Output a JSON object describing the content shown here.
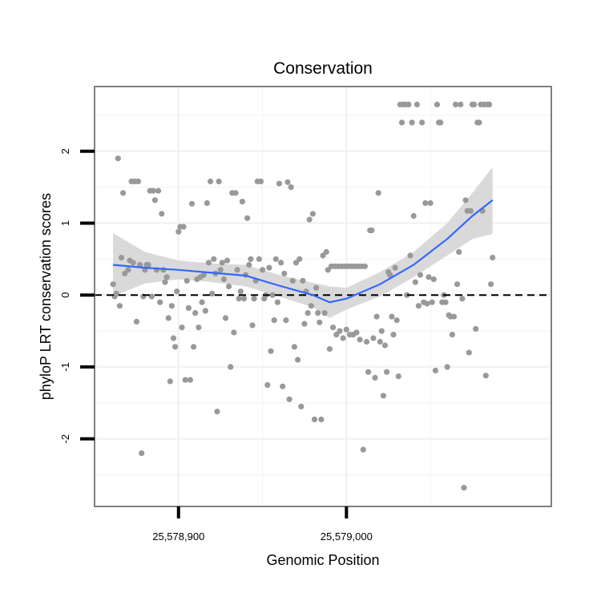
{
  "chart_data": {
    "type": "scatter",
    "title": "Conservation",
    "xlabel": "Genomic Position",
    "ylabel": "phyloP LRT conservation scores",
    "xlim": [
      25578850,
      25579122
    ],
    "ylim": [
      -2.94,
      2.9
    ],
    "x_ticks": [
      25578900,
      25579000
    ],
    "x_tick_labels": [
      "25,578,900",
      "25,579,000"
    ],
    "y_ticks": [
      -2,
      -1,
      0,
      1,
      2
    ],
    "y_tick_labels": [
      "-2",
      "-1",
      "0",
      "1",
      "2"
    ],
    "grid": true,
    "reference_line": {
      "y": 0,
      "style": "dashed"
    },
    "colors": {
      "points": "#999999",
      "smooth": "#3366ff",
      "ribbon": "#d9d9d9",
      "panel_border": "#7f7f7f",
      "grid": "#f2f2f2"
    },
    "points": [
      [
        25578861,
        0.15
      ],
      [
        25578862,
        -0.02
      ],
      [
        25578863,
        0.02
      ],
      [
        25578864,
        1.9
      ],
      [
        25578865,
        -0.15
      ],
      [
        25578866,
        0.52
      ],
      [
        25578867,
        1.42
      ],
      [
        25578868,
        0.3
      ],
      [
        25578870,
        0.35
      ],
      [
        25578871,
        0.48
      ],
      [
        25578872,
        1.58
      ],
      [
        25578873,
        0.45
      ],
      [
        25578874,
        1.58
      ],
      [
        25578875,
        -0.37
      ],
      [
        25578876,
        1.58
      ],
      [
        25578877,
        0.42
      ],
      [
        25578878,
        -2.2
      ],
      [
        25578879,
        -0.02
      ],
      [
        25578880,
        0.35
      ],
      [
        25578881,
        0.42
      ],
      [
        25578882,
        0.42
      ],
      [
        25578883,
        1.45
      ],
      [
        25578884,
        -0.02
      ],
      [
        25578885,
        1.45
      ],
      [
        25578886,
        1.32
      ],
      [
        25578887,
        0.35
      ],
      [
        25578888,
        1.45
      ],
      [
        25578889,
        -0.1
      ],
      [
        25578890,
        1.13
      ],
      [
        25578891,
        0.35
      ],
      [
        25578892,
        0.18
      ],
      [
        25578893,
        0.25
      ],
      [
        25578894,
        -0.32
      ],
      [
        25578895,
        -1.2
      ],
      [
        25578896,
        -0.15
      ],
      [
        25578897,
        -0.6
      ],
      [
        25578898,
        -0.72
      ],
      [
        25578899,
        0.05
      ],
      [
        25578900,
        0.88
      ],
      [
        25578901,
        0.95
      ],
      [
        25578902,
        -0.45
      ],
      [
        25578903,
        0.95
      ],
      [
        25578904,
        -1.18
      ],
      [
        25578905,
        0.2
      ],
      [
        25578906,
        -0.18
      ],
      [
        25578907,
        -1.18
      ],
      [
        25578908,
        1.27
      ],
      [
        25578909,
        -0.72
      ],
      [
        25578910,
        -0.25
      ],
      [
        25578911,
        0.22
      ],
      [
        25578912,
        -0.45
      ],
      [
        25578913,
        0.25
      ],
      [
        25578914,
        -0.1
      ],
      [
        25578915,
        0.28
      ],
      [
        25578916,
        -0.22
      ],
      [
        25578917,
        1.28
      ],
      [
        25578918,
        0.45
      ],
      [
        25578919,
        1.58
      ],
      [
        25578920,
        0.02
      ],
      [
        25578921,
        0.5
      ],
      [
        25578922,
        0.3
      ],
      [
        25578923,
        -1.62
      ],
      [
        25578924,
        1.58
      ],
      [
        25578925,
        0.35
      ],
      [
        25578926,
        0.45
      ],
      [
        25578927,
        0.22
      ],
      [
        25578928,
        -0.32
      ],
      [
        25578929,
        0.48
      ],
      [
        25578930,
        0.12
      ],
      [
        25578931,
        -1.0
      ],
      [
        25578932,
        1.42
      ],
      [
        25578933,
        -0.52
      ],
      [
        25578934,
        1.42
      ],
      [
        25578935,
        0.35
      ],
      [
        25578936,
        -0.05
      ],
      [
        25578937,
        0.05
      ],
      [
        25578938,
        1.3
      ],
      [
        25578939,
        -0.05
      ],
      [
        25578940,
        0.28
      ],
      [
        25578941,
        1.07
      ],
      [
        25578942,
        0.42
      ],
      [
        25578943,
        0.5
      ],
      [
        25578944,
        -0.42
      ],
      [
        25578945,
        -0.05
      ],
      [
        25578946,
        0.2
      ],
      [
        25578947,
        1.58
      ],
      [
        25578948,
        0.5
      ],
      [
        25578949,
        1.58
      ],
      [
        25578950,
        0.35
      ],
      [
        25578951,
        -0.05
      ],
      [
        25578952,
        0.0
      ],
      [
        25578953,
        -1.25
      ],
      [
        25578954,
        0.38
      ],
      [
        25578955,
        -0.78
      ],
      [
        25578956,
        0.0
      ],
      [
        25578957,
        -0.35
      ],
      [
        25578958,
        0.5
      ],
      [
        25578959,
        -0.1
      ],
      [
        25578960,
        1.55
      ],
      [
        25578961,
        0.45
      ],
      [
        25578962,
        -1.27
      ],
      [
        25578963,
        0.3
      ],
      [
        25578964,
        -0.35
      ],
      [
        25578965,
        1.57
      ],
      [
        25578966,
        -1.45
      ],
      [
        25578967,
        1.5
      ],
      [
        25578968,
        0.2
      ],
      [
        25578969,
        -0.72
      ],
      [
        25578970,
        0.45
      ],
      [
        25578971,
        -0.9
      ],
      [
        25578972,
        0.5
      ],
      [
        25578973,
        -1.55
      ],
      [
        25578974,
        0.2
      ],
      [
        25578975,
        -0.4
      ],
      [
        25578976,
        0.05
      ],
      [
        25578977,
        -0.25
      ],
      [
        25578978,
        1.05
      ],
      [
        25578979,
        -0.15
      ],
      [
        25578980,
        1.13
      ],
      [
        25578981,
        -1.73
      ],
      [
        25578982,
        0.1
      ],
      [
        25578983,
        -0.25
      ],
      [
        25578984,
        -0.38
      ],
      [
        25578985,
        -1.73
      ],
      [
        25578986,
        0.55
      ],
      [
        25578987,
        -0.25
      ],
      [
        25578988,
        0.6
      ],
      [
        25578989,
        0.35
      ],
      [
        25578990,
        -0.75
      ],
      [
        25578991,
        0.4
      ],
      [
        25578992,
        -0.45
      ],
      [
        25578993,
        0.4
      ],
      [
        25578994,
        -0.55
      ],
      [
        25578995,
        0.4
      ],
      [
        25578996,
        -0.5
      ],
      [
        25578997,
        0.4
      ],
      [
        25578998,
        -0.6
      ],
      [
        25578999,
        0.4
      ],
      [
        25579000,
        -0.48
      ],
      [
        25579001,
        0.4
      ],
      [
        25579002,
        -0.55
      ],
      [
        25579003,
        0.4
      ],
      [
        25579004,
        -0.55
      ],
      [
        25579005,
        0.4
      ],
      [
        25579006,
        -0.52
      ],
      [
        25579007,
        0.4
      ],
      [
        25579008,
        -0.62
      ],
      [
        25579009,
        0.4
      ],
      [
        25579010,
        -2.15
      ],
      [
        25579011,
        0.4
      ],
      [
        25579012,
        -0.65
      ],
      [
        25579013,
        -1.07
      ],
      [
        25579014,
        0.9
      ],
      [
        25579015,
        0.9
      ],
      [
        25579016,
        -0.6
      ],
      [
        25579017,
        -1.15
      ],
      [
        25579018,
        -0.3
      ],
      [
        25579019,
        1.42
      ],
      [
        25579020,
        -0.65
      ],
      [
        25579021,
        -0.5
      ],
      [
        25579022,
        -1.4
      ],
      [
        25579023,
        -0.7
      ],
      [
        25579024,
        -1.07
      ],
      [
        25579025,
        0.32
      ],
      [
        25579026,
        0.28
      ],
      [
        25579027,
        -0.3
      ],
      [
        25579028,
        -0.55
      ],
      [
        25579029,
        0.38
      ],
      [
        25579030,
        -0.35
      ],
      [
        25579031,
        -1.13
      ],
      [
        25579032,
        2.65
      ],
      [
        25579033,
        2.4
      ],
      [
        25579034,
        2.65
      ],
      [
        25579035,
        2.65
      ],
      [
        25579036,
        0.0
      ],
      [
        25579037,
        2.65
      ],
      [
        25579038,
        0.55
      ],
      [
        25579039,
        2.4
      ],
      [
        25579040,
        1.1
      ],
      [
        25579041,
        0.18
      ],
      [
        25579042,
        2.65
      ],
      [
        25579043,
        -0.15
      ],
      [
        25579044,
        0.28
      ],
      [
        25579045,
        2.4
      ],
      [
        25579046,
        -0.1
      ],
      [
        25579047,
        1.28
      ],
      [
        25579048,
        -0.12
      ],
      [
        25579049,
        0.25
      ],
      [
        25579050,
        1.28
      ],
      [
        25579051,
        -0.1
      ],
      [
        25579052,
        0.22
      ],
      [
        25579053,
        -1.05
      ],
      [
        25579054,
        2.65
      ],
      [
        25579055,
        2.4
      ],
      [
        25579056,
        2.4
      ],
      [
        25579057,
        -0.1
      ],
      [
        25579058,
        0.0
      ],
      [
        25579059,
        -0.1
      ],
      [
        25579060,
        -1.0
      ],
      [
        25579061,
        -0.28
      ],
      [
        25579062,
        -0.3
      ],
      [
        25579063,
        -0.55
      ],
      [
        25579064,
        -0.3
      ],
      [
        25579065,
        2.65
      ],
      [
        25579066,
        0.15
      ],
      [
        25579067,
        0.6
      ],
      [
        25579068,
        2.65
      ],
      [
        25579069,
        -0.05
      ],
      [
        25579070,
        -2.68
      ],
      [
        25579071,
        1.32
      ],
      [
        25579072,
        1.17
      ],
      [
        25579073,
        -0.8
      ],
      [
        25579074,
        1.17
      ],
      [
        25579075,
        2.65
      ],
      [
        25579076,
        2.65
      ],
      [
        25579077,
        -0.47
      ],
      [
        25579078,
        2.4
      ],
      [
        25579079,
        2.4
      ],
      [
        25579080,
        2.65
      ],
      [
        25579081,
        1.17
      ],
      [
        25579082,
        2.65
      ],
      [
        25579083,
        -1.12
      ],
      [
        25579084,
        2.65
      ],
      [
        25579085,
        2.65
      ],
      [
        25579086,
        0.15
      ],
      [
        25579087,
        0.52
      ]
    ],
    "smooth_line": [
      [
        25578861,
        0.42
      ],
      [
        25578880,
        0.38
      ],
      [
        25578900,
        0.35
      ],
      [
        25578920,
        0.31
      ],
      [
        25578940,
        0.27
      ],
      [
        25578960,
        0.13
      ],
      [
        25578980,
        0.0
      ],
      [
        25578990,
        -0.1
      ],
      [
        25579000,
        -0.05
      ],
      [
        25579020,
        0.15
      ],
      [
        25579040,
        0.42
      ],
      [
        25579060,
        0.78
      ],
      [
        25579075,
        1.1
      ],
      [
        25579087,
        1.32
      ]
    ],
    "smooth_ribbon_lower": [
      [
        25578861,
        -0.02
      ],
      [
        25578880,
        0.16
      ],
      [
        25578900,
        0.22
      ],
      [
        25578920,
        0.18
      ],
      [
        25578940,
        0.12
      ],
      [
        25578960,
        -0.02
      ],
      [
        25578980,
        -0.17
      ],
      [
        25578990,
        -0.32
      ],
      [
        25579000,
        -0.2
      ],
      [
        25579020,
        -0.02
      ],
      [
        25579040,
        0.25
      ],
      [
        25579060,
        0.55
      ],
      [
        25579075,
        0.78
      ],
      [
        25579087,
        0.85
      ]
    ],
    "smooth_ribbon_upper": [
      [
        25578861,
        0.86
      ],
      [
        25578880,
        0.6
      ],
      [
        25578900,
        0.48
      ],
      [
        25578920,
        0.44
      ],
      [
        25578940,
        0.42
      ],
      [
        25578960,
        0.28
      ],
      [
        25578980,
        0.17
      ],
      [
        25578990,
        0.12
      ],
      [
        25579000,
        0.1
      ],
      [
        25579020,
        0.32
      ],
      [
        25579040,
        0.6
      ],
      [
        25579060,
        1.0
      ],
      [
        25579075,
        1.42
      ],
      [
        25579087,
        1.78
      ]
    ]
  }
}
